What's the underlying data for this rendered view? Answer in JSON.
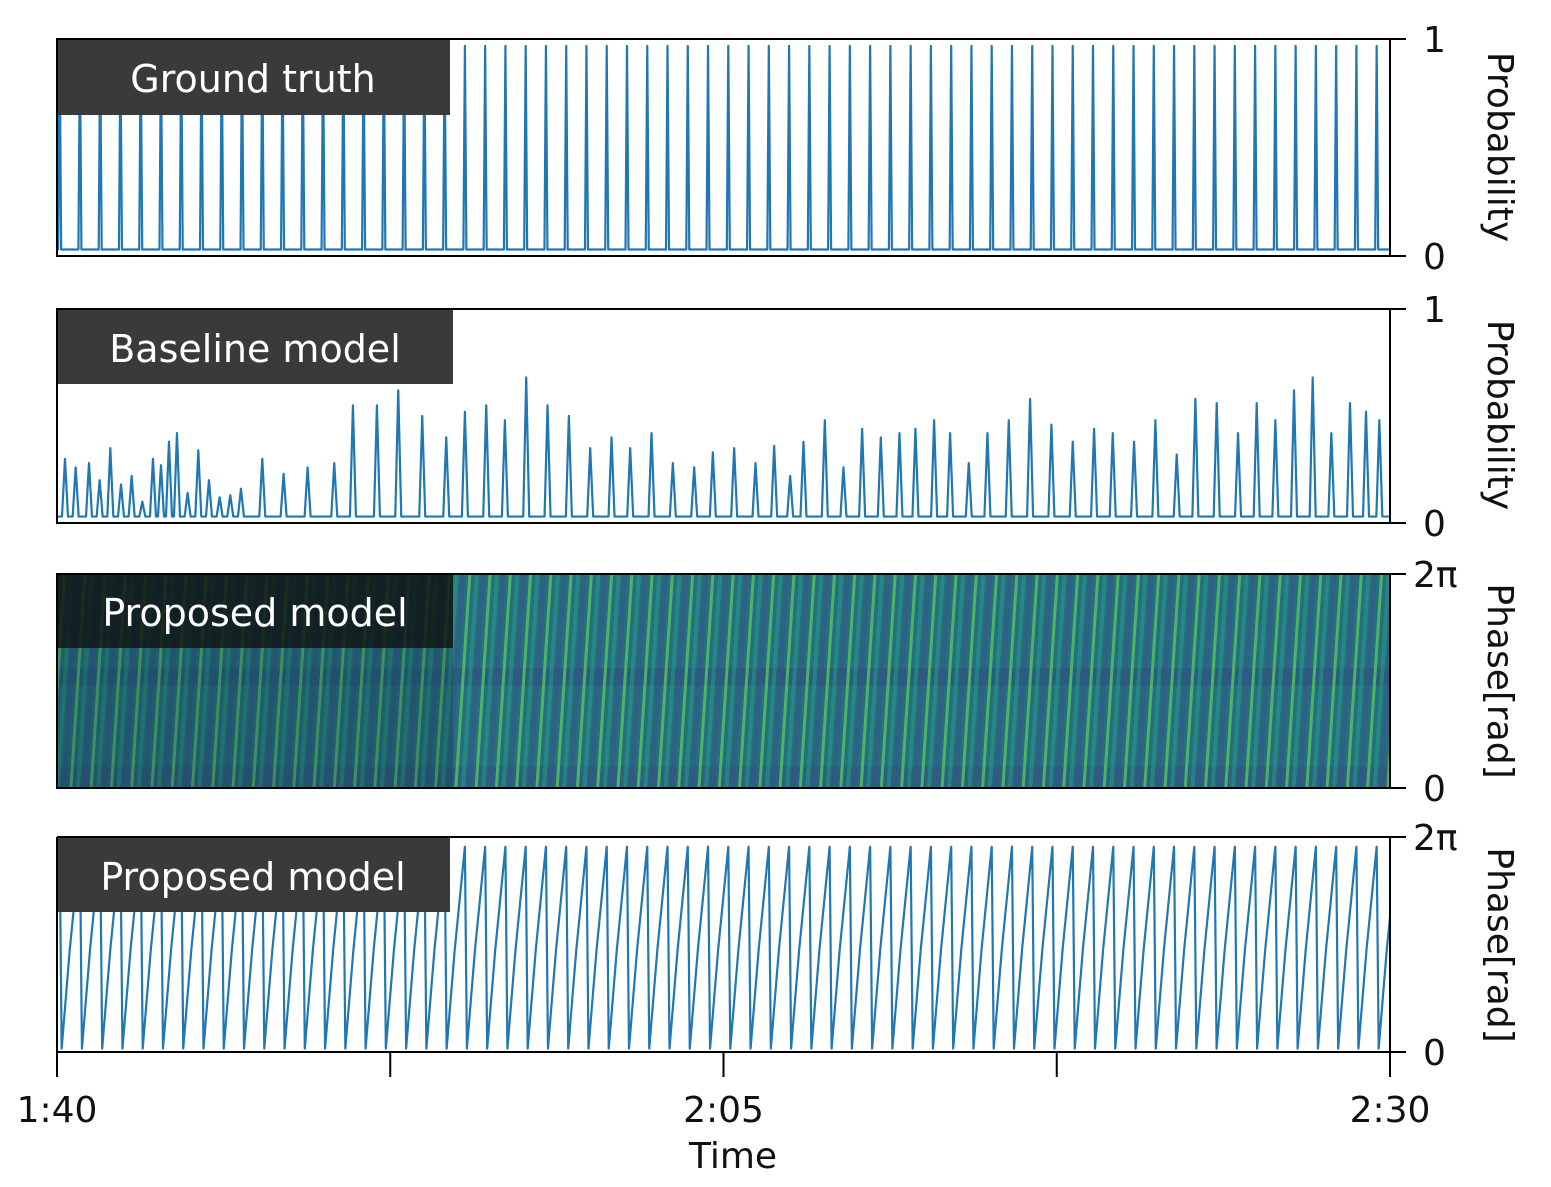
{
  "chart_data": [
    {
      "type": "line",
      "label": "Ground truth",
      "ylabel": "Probability",
      "yticks": [
        "1",
        "0"
      ],
      "ylim": [
        0,
        1
      ],
      "xlim_seconds": [
        100,
        150
      ],
      "series": [
        {
          "beat_times_s": [
            100.1,
            100.86,
            101.62,
            102.38,
            103.14,
            103.9,
            104.66,
            105.42,
            106.18,
            106.94,
            107.7,
            108.46,
            109.22,
            109.98,
            110.74,
            111.5,
            112.26,
            113.02,
            113.78,
            114.54,
            115.3,
            116.06,
            116.82,
            117.58,
            118.34,
            119.1,
            119.86,
            120.62,
            121.38,
            122.14,
            122.9,
            123.66,
            124.42,
            125.18,
            125.94,
            126.7,
            127.46,
            128.22,
            128.98,
            129.74,
            130.5,
            131.26,
            132.02,
            132.78,
            133.54,
            134.3,
            135.06,
            135.82,
            136.58,
            137.34,
            138.1,
            138.86,
            139.62,
            140.38,
            141.14,
            141.9,
            142.66,
            143.42,
            144.18,
            144.94,
            145.7,
            146.46,
            147.22,
            147.98,
            148.74,
            149.5
          ],
          "peak_value": 1,
          "base_value": 0.03
        }
      ]
    },
    {
      "type": "line",
      "label": "Baseline model",
      "ylabel": "Probability",
      "yticks": [
        "1",
        "0"
      ],
      "ylim": [
        0,
        1
      ],
      "xlim_seconds": [
        100,
        150
      ],
      "series": [
        {
          "peaks": [
            [
              100.3,
              0.3
            ],
            [
              100.7,
              0.26
            ],
            [
              101.2,
              0.28
            ],
            [
              101.6,
              0.2
            ],
            [
              102.0,
              0.35
            ],
            [
              102.4,
              0.18
            ],
            [
              102.8,
              0.22
            ],
            [
              103.2,
              0.1
            ],
            [
              103.6,
              0.3
            ],
            [
              103.9,
              0.27
            ],
            [
              104.2,
              0.38
            ],
            [
              104.5,
              0.42
            ],
            [
              104.9,
              0.14
            ],
            [
              105.3,
              0.34
            ],
            [
              105.7,
              0.2
            ],
            [
              106.1,
              0.12
            ],
            [
              106.5,
              0.13
            ],
            [
              106.9,
              0.16
            ],
            [
              107.7,
              0.3
            ],
            [
              108.5,
              0.23
            ],
            [
              109.4,
              0.26
            ],
            [
              110.4,
              0.28
            ],
            [
              111.1,
              0.55
            ],
            [
              112.0,
              0.55
            ],
            [
              112.8,
              0.62
            ],
            [
              113.7,
              0.5
            ],
            [
              114.6,
              0.4
            ],
            [
              115.3,
              0.52
            ],
            [
              116.1,
              0.55
            ],
            [
              116.8,
              0.48
            ],
            [
              117.6,
              0.68
            ],
            [
              118.4,
              0.55
            ],
            [
              119.2,
              0.5
            ],
            [
              120.0,
              0.35
            ],
            [
              120.8,
              0.4
            ],
            [
              121.5,
              0.35
            ],
            [
              122.3,
              0.42
            ],
            [
              123.1,
              0.28
            ],
            [
              123.9,
              0.26
            ],
            [
              124.6,
              0.33
            ],
            [
              125.4,
              0.35
            ],
            [
              126.2,
              0.28
            ],
            [
              126.9,
              0.36
            ],
            [
              127.5,
              0.22
            ],
            [
              128.0,
              0.38
            ],
            [
              128.8,
              0.48
            ],
            [
              129.5,
              0.26
            ],
            [
              130.2,
              0.44
            ],
            [
              130.9,
              0.4
            ],
            [
              131.6,
              0.42
            ],
            [
              132.2,
              0.44
            ],
            [
              132.9,
              0.48
            ],
            [
              133.5,
              0.42
            ],
            [
              134.2,
              0.28
            ],
            [
              134.9,
              0.42
            ],
            [
              135.7,
              0.48
            ],
            [
              136.5,
              0.58
            ],
            [
              137.3,
              0.46
            ],
            [
              138.1,
              0.38
            ],
            [
              138.9,
              0.44
            ],
            [
              139.6,
              0.42
            ],
            [
              140.4,
              0.38
            ],
            [
              141.2,
              0.48
            ],
            [
              142.0,
              0.32
            ],
            [
              142.7,
              0.58
            ],
            [
              143.5,
              0.56
            ],
            [
              144.3,
              0.42
            ],
            [
              145.0,
              0.56
            ],
            [
              145.7,
              0.48
            ],
            [
              146.4,
              0.62
            ],
            [
              147.1,
              0.68
            ],
            [
              147.8,
              0.42
            ],
            [
              148.5,
              0.56
            ],
            [
              149.1,
              0.52
            ],
            [
              149.6,
              0.48
            ]
          ],
          "base_value": 0.03
        }
      ]
    },
    {
      "type": "heatmap",
      "label": "Proposed model",
      "ylabel": "Phase[rad]",
      "yticks": [
        "2π",
        "0"
      ],
      "ylim": [
        0,
        6.2832
      ],
      "xlim_seconds": [
        100,
        150
      ],
      "colormap": "viridis",
      "beat_period_s": 0.76
    },
    {
      "type": "line",
      "label": "Proposed model",
      "ylabel": "Phase[rad]",
      "yticks": [
        "2π",
        "0"
      ],
      "ylim": [
        0,
        6.2832
      ],
      "xlim_seconds": [
        100,
        150
      ],
      "xticks": [
        "1:40",
        "",
        "2:05",
        "",
        "2:30"
      ],
      "xtick_seconds": [
        100,
        112.5,
        125,
        137.5,
        150
      ],
      "xlabel": "Time",
      "series": [
        {
          "sawtooth_period_s": 0.76,
          "start_s": 100.1,
          "min_value": 0.1,
          "max_value": 6.0
        }
      ]
    }
  ],
  "colors": {
    "trace": "#1f77b4",
    "label_box": "#3a3a3a",
    "label_text": "#ffffff"
  }
}
